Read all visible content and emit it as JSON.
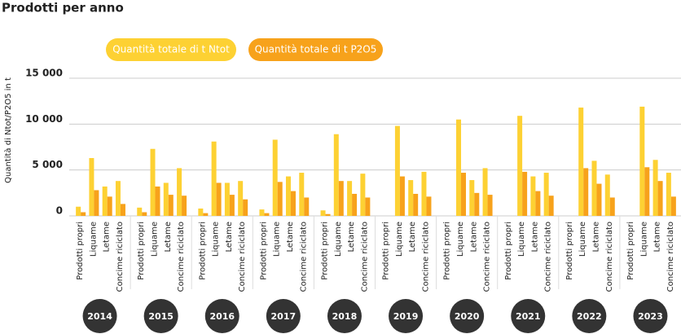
{
  "chart_data": {
    "type": "bar",
    "title": "Prodotti per anno",
    "y_label": "Quantità di Ntot/P2O5 in t",
    "groups": [
      "2014",
      "2015",
      "2016",
      "2017",
      "2018",
      "2019",
      "2020",
      "2021",
      "2022",
      "2023"
    ],
    "categories": [
      "Prodotti propri",
      "Liquame",
      "Letame",
      "Concime riciclato",
      "Prodotti propri",
      "Liquame",
      "Letame",
      "Concime riciclato",
      "Prodotti propri",
      "Liquame",
      "Letame",
      "Concime riciclato",
      "Prodotti propri",
      "Liquame",
      "Letame",
      "Concime riciclato",
      "Prodotti propri",
      "Liquame",
      "Letame",
      "Concime riciclato",
      "Prodotti propri",
      "Liquame",
      "Letame",
      "Concime riciclato",
      "Prodotti propri",
      "Liquame",
      "Letame",
      "Concime riciclato",
      "Prodotti propri",
      "Liquame",
      "Letame",
      "Concime riciclato",
      "Prodotti propri",
      "Liquame",
      "Letame",
      "Concime riciclato",
      "Prodotti propri",
      "Liquame",
      "Letame",
      "Concime riciclato"
    ],
    "series": [
      {
        "name": "Quantità totale di t Ntot",
        "color": "#fdd133",
        "values": [
          1000,
          6300,
          3200,
          3800,
          900,
          7300,
          3600,
          5200,
          800,
          8100,
          3600,
          3800,
          700,
          8300,
          4300,
          4700,
          600,
          8900,
          3800,
          4600,
          0,
          9800,
          3900,
          4800,
          0,
          10500,
          3900,
          5200,
          0,
          10900,
          4300,
          4700,
          0,
          11800,
          6000,
          4500,
          0,
          11900,
          6100,
          4700
        ]
      },
      {
        "name": "Quantità totale di t P2O5",
        "color": "#f7a21b",
        "values": [
          400,
          2800,
          2100,
          1300,
          400,
          3200,
          2300,
          2200,
          300,
          3600,
          2300,
          1800,
          300,
          3700,
          2700,
          2000,
          200,
          3800,
          2400,
          2000,
          0,
          4300,
          2400,
          2100,
          0,
          4700,
          2500,
          2300,
          0,
          4800,
          2700,
          2200,
          0,
          5200,
          3500,
          2000,
          0,
          5300,
          3800,
          2100
        ]
      }
    ],
    "ylim": [
      0,
      15000
    ],
    "yticks": [
      0,
      {
        "value": 5000,
        "label": "5 000"
      },
      {
        "value": 10000,
        "label": "10 000"
      },
      {
        "value": 15000,
        "label": "15 000"
      }
    ],
    "grid": true
  }
}
